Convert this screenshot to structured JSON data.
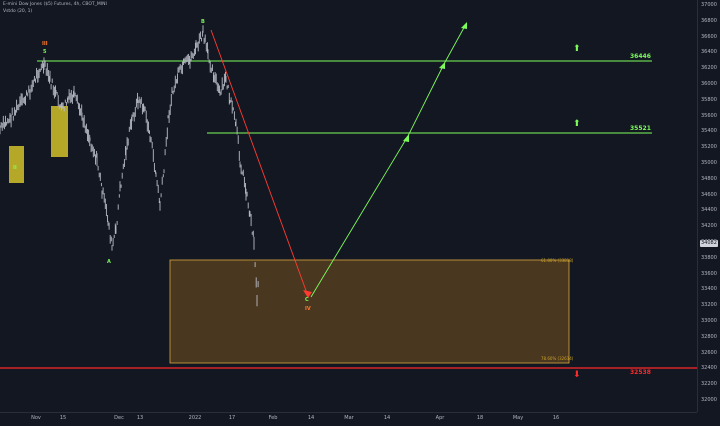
{
  "symbol_legend": "E-mini Dow Jones ($5) Futures, 4h, CBOT_MINI",
  "indicator_legend": "Vstdo (20, 1)",
  "current_price_tag": "34082",
  "price_ticks": [
    "37000",
    "36800",
    "36600",
    "36400",
    "36200",
    "36000",
    "35800",
    "35600",
    "35400",
    "35200",
    "35000",
    "34800",
    "34600",
    "34400",
    "34200",
    "34000",
    "33800",
    "33600",
    "33400",
    "33200",
    "33000",
    "32800",
    "32600",
    "32400",
    "32200",
    "32000"
  ],
  "time_ticks": [
    "Nov",
    "15",
    "Dec",
    "13",
    "2022",
    "17",
    "Feb",
    "14",
    "Mar",
    "14",
    "Apr",
    "18",
    "May",
    "16"
  ],
  "levels": {
    "upper": {
      "label": "36446",
      "color": "#7cfc5a"
    },
    "middle": {
      "label": "35521",
      "color": "#7cfc5a"
    },
    "support": {
      "label": "32538",
      "color": "#ff2a2a"
    }
  },
  "fib_labels": {
    "top": "61.80% (33818)",
    "bottom": "78.60% (32614)"
  },
  "wave_labels": {
    "iii": "III",
    "five": "5",
    "b": "B",
    "a": "A",
    "c": "C",
    "iv": "IV",
    "ii": "II"
  },
  "icons": [
    "up-arrow-icon",
    "down-arrow-icon"
  ],
  "colors": {
    "background": "#131722",
    "candles": "#b8bcc6",
    "projection_up": "#7cfc5a",
    "projection_down": "#ff3b30",
    "zone_fill": "#4a3720",
    "zone_border": "#d9a640",
    "highlight": "#c8b82a"
  }
}
